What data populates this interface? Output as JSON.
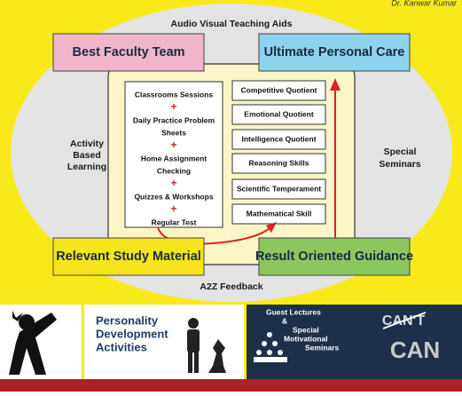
{
  "header": {
    "author": "Dr. Kanwar Kumar"
  },
  "outer_labels": {
    "top": "Audio Visual Teaching Aids",
    "bottom": "A2Z Feedback",
    "left": [
      "Activity",
      "Based",
      "Learning"
    ],
    "right": [
      "Special",
      "Seminars"
    ]
  },
  "corner_boxes": [
    "Best Faculty Team",
    "Ultimate Personal Care",
    "Relevant Study Material",
    "Result Oriented Guidance"
  ],
  "process": {
    "steps": [
      [
        "Classrooms Sessions"
      ],
      [
        "Daily Practice Problem",
        "Sheets"
      ],
      [
        "Home Assignment",
        "Checking"
      ],
      [
        "Quizzes & Workshops"
      ],
      [
        "Regular Test"
      ]
    ],
    "joiner": "+"
  },
  "skills": [
    "Competitive Quotient",
    "Emotional Quotient",
    "Intelligence Quotient",
    "Reasoning Skills",
    "Scientific Temperament",
    "Mathematical Skill"
  ],
  "panels": {
    "personality": [
      "Personality",
      "Development",
      "Activities"
    ],
    "seminars": [
      "Guest Lectures",
      "&",
      "Special",
      "Motivational",
      "Seminars"
    ],
    "cant": "CAN'T",
    "can": "CAN"
  }
}
